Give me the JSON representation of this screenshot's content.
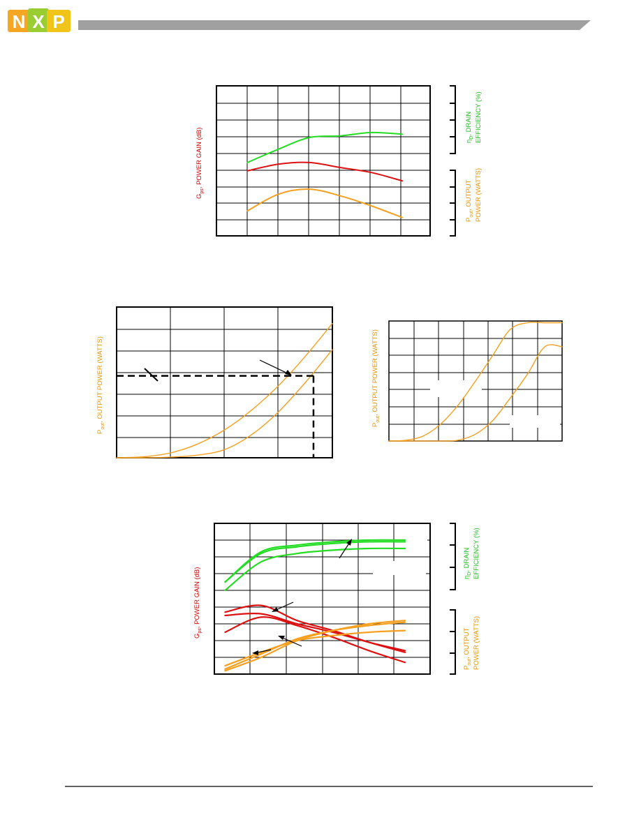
{
  "header": {
    "logo_text": "NXP",
    "logo_letters": [
      "N",
      "X",
      "P"
    ],
    "logo_colors": [
      "#F5A623",
      "#9ACD32",
      "#F0C419"
    ],
    "bar_color": "#A0A0A0"
  },
  "colors": {
    "green": "#22DD22",
    "red": "#DD1111",
    "orange": "#F5A020",
    "gain_label": "#CC0000",
    "eff_label": "#22BB22",
    "pout_label": "#E89400",
    "grid": "#000000"
  },
  "charts": [
    {
      "id": "chart1",
      "left_label_main": "G",
      "left_label_sub": "ps",
      "left_label_rest": ", POWER GAIN (dB)",
      "right_top_line1_sym": "η",
      "right_top_line1_sub": "D",
      "right_top_line1_rest": ", DRAIN",
      "right_top_line2": "EFFICIENCY (%)",
      "right_bottom_line1_main": "P",
      "right_bottom_line1_sub": "out",
      "right_bottom_line1_rest": ", OUTPUT",
      "right_bottom_line2": "POWER (WATTS)"
    },
    {
      "id": "chart2",
      "ylabel_main": "P",
      "ylabel_sub": "out",
      "ylabel_rest": ", OUTPUT POWER (WATTS)"
    },
    {
      "id": "chart3",
      "ylabel_main": "P",
      "ylabel_sub": "out",
      "ylabel_rest": ", OUTPUT POWER (WATTS)"
    },
    {
      "id": "chart4",
      "left_label_main": "G",
      "left_label_sub": "ps",
      "left_label_rest": ", POWER GAIN (dB)",
      "right_top_line1_sym": "η",
      "right_top_line1_sub": "D",
      "right_top_line1_rest": ", DRAIN",
      "right_top_line2": "EFFICIENCY (%)",
      "right_bottom_line1_main": "P",
      "right_bottom_line1_sub": "out",
      "right_bottom_line1_rest": ", OUTPUT",
      "right_bottom_line2": "POWER (WATTS)"
    }
  ],
  "chart_data": [
    {
      "type": "line",
      "title": "",
      "x": [
        0,
        1,
        2,
        3,
        4,
        5
      ],
      "series": [
        {
          "color": "green",
          "values": [
            2.4,
            3.2,
            3.9,
            4.0,
            4.2,
            4.1
          ]
        },
        {
          "color": "red",
          "values": [
            1.9,
            2.3,
            2.4,
            2.1,
            1.8,
            1.3
          ]
        },
        {
          "color": "orange",
          "values": [
            -0.5,
            0.5,
            0.8,
            0.4,
            -0.2,
            -0.9
          ]
        }
      ],
      "xlim": [
        -1,
        5.9
      ],
      "ylim": [
        -2,
        7
      ],
      "grid": true
    },
    {
      "type": "line",
      "title": "",
      "x": [
        0,
        1,
        2,
        3,
        4,
        5,
        6,
        7,
        8
      ],
      "series": [
        {
          "color": "orange",
          "values": [
            0,
            0.03,
            0.15,
            0.42,
            0.85,
            1.45,
            2.2,
            3.1,
            4.1
          ]
        },
        {
          "color": "orange",
          "values": [
            0,
            0,
            0.02,
            0.08,
            0.25,
            0.7,
            1.4,
            2.3,
            3.3
          ]
        }
      ],
      "xlim": [
        0,
        8
      ],
      "ylim": [
        0,
        4.6
      ],
      "reference_level": 2.5,
      "reference_x": 7.3,
      "grid": true
    },
    {
      "type": "line",
      "title": "",
      "x": [
        0,
        1,
        2,
        3,
        4,
        5,
        6,
        7,
        8,
        9,
        10
      ],
      "series": [
        {
          "color": "orange",
          "values": [
            0,
            0.05,
            0.3,
            1.0,
            2.1,
            3.5,
            5.0,
            6.5,
            6.9,
            6.9,
            6.9
          ]
        },
        {
          "color": "orange",
          "values": [
            0,
            0,
            0,
            0,
            0.05,
            0.4,
            1.2,
            2.5,
            3.9,
            5.5,
            5.5
          ]
        }
      ],
      "xlim": [
        0,
        10
      ],
      "ylim": [
        0,
        7
      ],
      "grid": true
    },
    {
      "type": "line",
      "title": "",
      "x": [
        0,
        1,
        2,
        3,
        4,
        5
      ],
      "series": [
        {
          "color": "green",
          "values": [
            5.5,
            7.3,
            7.7,
            7.9,
            8.0,
            8.0
          ]
        },
        {
          "color": "green",
          "values": [
            5.5,
            7.2,
            7.6,
            7.8,
            7.9,
            7.9
          ]
        },
        {
          "color": "green",
          "values": [
            5.0,
            6.7,
            7.2,
            7.4,
            7.5,
            7.5
          ]
        },
        {
          "color": "red",
          "values": [
            3.7,
            4.1,
            3.2,
            2.6,
            1.9,
            1.3
          ]
        },
        {
          "color": "red",
          "values": [
            3.5,
            3.6,
            3.0,
            2.5,
            1.9,
            1.4
          ]
        },
        {
          "color": "red",
          "values": [
            2.5,
            3.4,
            2.9,
            2.2,
            1.4,
            0.7
          ]
        },
        {
          "color": "orange",
          "values": [
            0.2,
            1.0,
            2.0,
            2.6,
            3.0,
            3.2
          ]
        },
        {
          "color": "orange",
          "values": [
            0.3,
            1.2,
            2.1,
            2.6,
            2.9,
            3.1
          ]
        },
        {
          "color": "orange",
          "values": [
            0.5,
            1.3,
            2.0,
            2.3,
            2.5,
            2.6
          ]
        }
      ],
      "xlim": [
        -0.3,
        5.7
      ],
      "ylim": [
        0,
        9
      ],
      "grid": true
    }
  ]
}
